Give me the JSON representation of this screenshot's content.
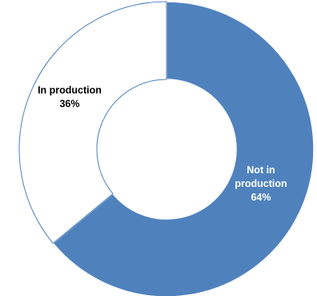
{
  "chart_data": {
    "type": "pie",
    "donut": true,
    "title": "",
    "slices": [
      {
        "name": "Not in production",
        "value": 64,
        "percent_label": "64%",
        "color": "#4f81bd",
        "label_color": "#ffffff"
      },
      {
        "name": "In production",
        "value": 36,
        "percent_label": "36%",
        "color": "#ffffff",
        "label_color": "#000000",
        "stroke": "#4f81bd"
      }
    ],
    "legend": "none"
  }
}
